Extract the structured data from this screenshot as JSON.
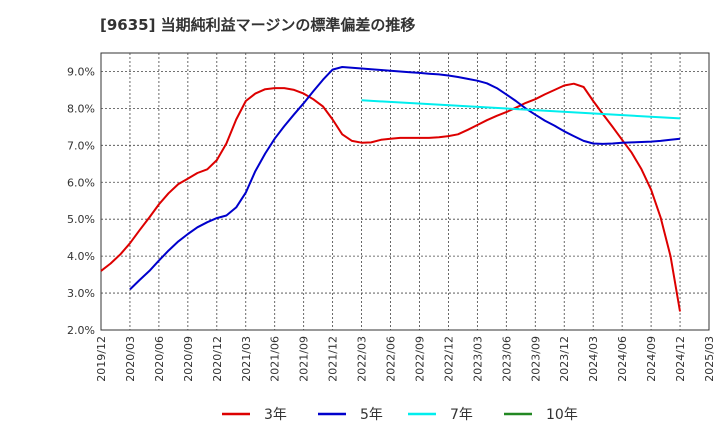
{
  "chart_data": {
    "type": "line",
    "title": "[9635]  当期純利益マージンの標準偏差の推移",
    "xlabel": "",
    "ylabel": "",
    "x_ticks": [
      "2019/12",
      "2020/03",
      "2020/06",
      "2020/09",
      "2020/12",
      "2021/03",
      "2021/06",
      "2021/09",
      "2021/12",
      "2022/03",
      "2022/06",
      "2022/09",
      "2022/12",
      "2023/03",
      "2023/06",
      "2023/09",
      "2023/12",
      "2024/03",
      "2024/06",
      "2024/09",
      "2024/12",
      "2025/03"
    ],
    "y_ticks": [
      "2.0%",
      "3.0%",
      "4.0%",
      "5.0%",
      "6.0%",
      "7.0%",
      "8.0%",
      "9.0%"
    ],
    "xlim": [
      0,
      21
    ],
    "ylim": [
      2.0,
      9.5
    ],
    "grid": true,
    "legend_position": "bottom",
    "series": [
      {
        "name": "3年",
        "color": "#dd0000",
        "x": [
          0,
          0.33,
          0.67,
          1,
          1.33,
          1.67,
          2,
          2.33,
          2.67,
          3,
          3.33,
          3.67,
          4,
          4.33,
          4.67,
          5,
          5.33,
          5.67,
          6,
          6.33,
          6.67,
          7,
          7.33,
          7.67,
          8,
          8.33,
          8.67,
          9,
          9.33,
          9.67,
          10,
          10.33,
          10.67,
          11,
          11.33,
          11.67,
          12,
          12.33,
          12.67,
          13,
          13.33,
          13.67,
          14,
          14.33,
          14.67,
          15,
          15.33,
          15.67,
          16,
          16.33,
          16.67,
          17,
          17.33,
          17.67,
          18,
          18.33,
          18.67,
          19,
          19.33,
          19.67,
          20
        ],
        "values": [
          3.6,
          3.8,
          4.05,
          4.35,
          4.7,
          5.05,
          5.4,
          5.7,
          5.95,
          6.1,
          6.25,
          6.35,
          6.6,
          7.05,
          7.7,
          8.2,
          8.4,
          8.52,
          8.55,
          8.55,
          8.5,
          8.4,
          8.25,
          8.05,
          7.7,
          7.3,
          7.12,
          7.07,
          7.08,
          7.15,
          7.18,
          7.2,
          7.2,
          7.2,
          7.2,
          7.22,
          7.25,
          7.3,
          7.42,
          7.55,
          7.68,
          7.8,
          7.9,
          8.02,
          8.15,
          8.25,
          8.38,
          8.5,
          8.62,
          8.67,
          8.58,
          8.2,
          7.85,
          7.5,
          7.15,
          6.8,
          6.35,
          5.8,
          5.05,
          4.0,
          2.5
        ]
      },
      {
        "name": "5年",
        "color": "#0000cc",
        "x": [
          1,
          1.33,
          1.67,
          2,
          2.33,
          2.67,
          3,
          3.33,
          3.67,
          4,
          4.33,
          4.67,
          5,
          5.33,
          5.67,
          6,
          6.33,
          6.67,
          7,
          7.33,
          7.67,
          8,
          8.33,
          8.67,
          9,
          9.33,
          9.67,
          10,
          10.33,
          10.67,
          11,
          11.33,
          11.67,
          12,
          12.33,
          12.67,
          13,
          13.33,
          13.67,
          14,
          14.33,
          14.67,
          15,
          15.33,
          15.67,
          16,
          16.33,
          16.67,
          17,
          17.33,
          17.67,
          18,
          18.33,
          18.67,
          19,
          19.33,
          19.67,
          20
        ],
        "values": [
          3.1,
          3.35,
          3.6,
          3.88,
          4.15,
          4.4,
          4.6,
          4.78,
          4.92,
          5.03,
          5.1,
          5.32,
          5.72,
          6.3,
          6.78,
          7.18,
          7.52,
          7.84,
          8.14,
          8.46,
          8.78,
          9.05,
          9.12,
          9.1,
          9.08,
          9.06,
          9.04,
          9.02,
          9.0,
          8.98,
          8.96,
          8.94,
          8.92,
          8.89,
          8.85,
          8.8,
          8.75,
          8.68,
          8.55,
          8.38,
          8.2,
          8.0,
          7.83,
          7.67,
          7.53,
          7.38,
          7.25,
          7.12,
          7.05,
          7.04,
          7.05,
          7.07,
          7.08,
          7.09,
          7.1,
          7.12,
          7.15,
          7.18
        ]
      },
      {
        "name": "7年",
        "color": "#00eeee",
        "x": [
          9,
          20
        ],
        "values": [
          8.22,
          7.73
        ]
      },
      {
        "name": "10年",
        "color": "#228822",
        "x": [],
        "values": []
      }
    ]
  }
}
